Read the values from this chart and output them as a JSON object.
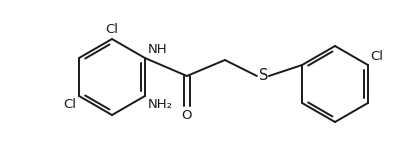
{
  "bg_color": "#ffffff",
  "line_color": "#1a1a1a",
  "font_size": 9.5,
  "bond_width": 1.4,
  "figsize": [
    4.05,
    1.59
  ],
  "dpi": 100,
  "xlim": [
    0,
    405
  ],
  "ylim": [
    0,
    159
  ]
}
